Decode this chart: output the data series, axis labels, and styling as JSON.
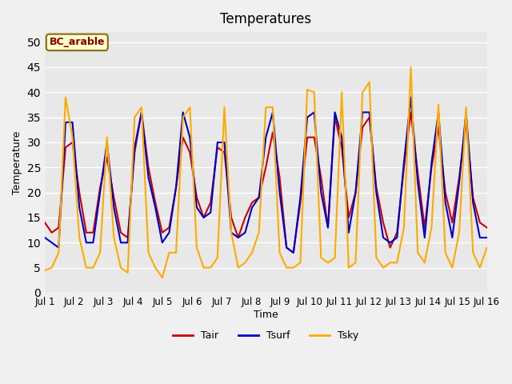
{
  "title": "Temperatures",
  "xlabel": "Time",
  "ylabel": "Temperature",
  "annotation": "BC_arable",
  "ylim": [
    0,
    52
  ],
  "yticks": [
    0,
    5,
    10,
    15,
    20,
    25,
    30,
    35,
    40,
    45,
    50
  ],
  "line_colors": {
    "Tair": "#cc0000",
    "Tsurf": "#0000cc",
    "Tsky": "#ffaa00"
  },
  "background_color": "#e8e8e8",
  "grid_color": "#ffffff",
  "legend_labels": [
    "Tair",
    "Tsurf",
    "Tsky"
  ],
  "xtick_labels": [
    "Jul 1",
    "Jul 2",
    "Jul 3",
    "Jul 4",
    "Jul 5",
    "Jul 6",
    "Jul 7",
    "Jul 8",
    "Jul 9",
    "Jul 10",
    "Jul 11",
    "Jul 12",
    "Jul 13",
    "Jul 14",
    "Jul 15",
    "Jul 16"
  ],
  "Tair": [
    14,
    12,
    13,
    29,
    30,
    20,
    12,
    12,
    21,
    27,
    19,
    12,
    11,
    28,
    36,
    25,
    18,
    12,
    13,
    21,
    31,
    28,
    19,
    15,
    18,
    29,
    28,
    15,
    11,
    15,
    18,
    19,
    25,
    32,
    23,
    9,
    8,
    18,
    31,
    31,
    23,
    13,
    35,
    29,
    15,
    20,
    33,
    35,
    21,
    14,
    9,
    12,
    25,
    36,
    24,
    13,
    25,
    33,
    20,
    14,
    23,
    34,
    19,
    14,
    13
  ],
  "Tsurf": [
    11,
    10,
    9,
    34,
    34,
    17,
    10,
    10,
    20,
    30,
    17,
    10,
    10,
    29,
    36,
    23,
    17,
    10,
    12,
    21,
    36,
    31,
    17,
    15,
    16,
    30,
    30,
    12,
    11,
    12,
    17,
    19,
    31,
    36,
    20,
    9,
    8,
    19,
    35,
    36,
    20,
    13,
    36,
    31,
    12,
    20,
    36,
    36,
    20,
    11,
    10,
    11,
    26,
    39,
    22,
    11,
    26,
    36,
    18,
    11,
    22,
    36,
    18,
    11,
    11
  ],
  "Tsky": [
    4.5,
    5,
    8,
    39,
    31,
    11,
    5,
    5,
    8,
    31,
    11,
    5,
    4,
    35,
    37,
    8,
    5,
    3,
    8,
    8,
    35,
    37,
    9,
    5,
    5,
    7,
    37,
    12,
    5,
    6,
    8,
    12,
    37,
    37,
    8,
    5,
    5,
    6,
    40.5,
    40,
    7,
    6,
    7,
    40,
    5,
    6,
    40,
    42,
    7,
    5,
    6,
    6,
    13,
    45,
    8,
    6,
    13,
    37.5,
    8,
    5,
    12,
    37,
    8,
    5,
    9
  ]
}
